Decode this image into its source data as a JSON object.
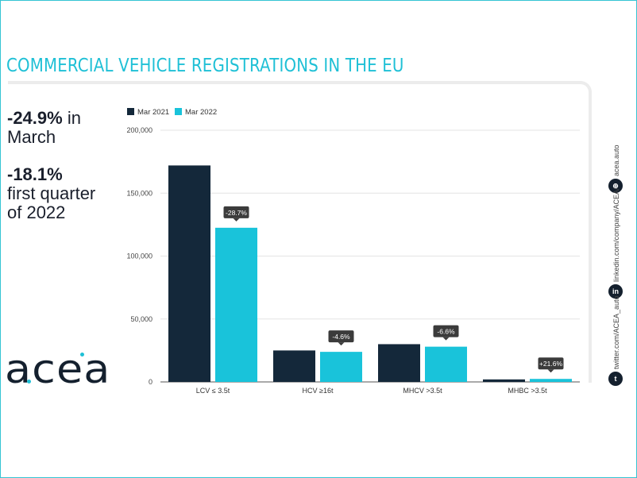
{
  "header": {
    "title": "COMMERCIAL VEHICLE REGISTRATIONS IN THE EU"
  },
  "kpis": {
    "march_value": "-24.9%",
    "march_label": "in March",
    "quarter_value": "-18.1%",
    "quarter_label_1": "first quarter",
    "quarter_label_2": "of 2022"
  },
  "logo": {
    "text": "acea"
  },
  "social": {
    "website": "acea.auto",
    "linkedin": "linkedin.com/company/ACEA/",
    "twitter": "twitter.com/ACEA_auto",
    "icons": [
      "globe-icon",
      "linkedin-icon",
      "twitter-icon"
    ]
  },
  "colors": {
    "accent": "#1fc0d6",
    "series_2021": "#14283a",
    "series_2022": "#19c3da",
    "text_dark": "#1a1f2c"
  },
  "chart_data": {
    "type": "bar",
    "categories": [
      "LCV ≤ 3.5t",
      "HCV ≥16t",
      "MHCV >3.5t",
      "MHBC >3.5t"
    ],
    "series": [
      {
        "name": "Mar 2021",
        "values": [
          172000,
          25000,
          30000,
          2000
        ]
      },
      {
        "name": "Mar 2022",
        "values": [
          122500,
          23900,
          28000,
          2400
        ]
      }
    ],
    "change_labels": [
      "-28.7%",
      "-4.6%",
      "-6.6%",
      "+21.6%"
    ],
    "yticks": [
      "0",
      "50,000",
      "100,000",
      "150,000",
      "200,000"
    ],
    "ylim": [
      0,
      200000
    ],
    "grid": true,
    "legend_position": "top-left"
  }
}
